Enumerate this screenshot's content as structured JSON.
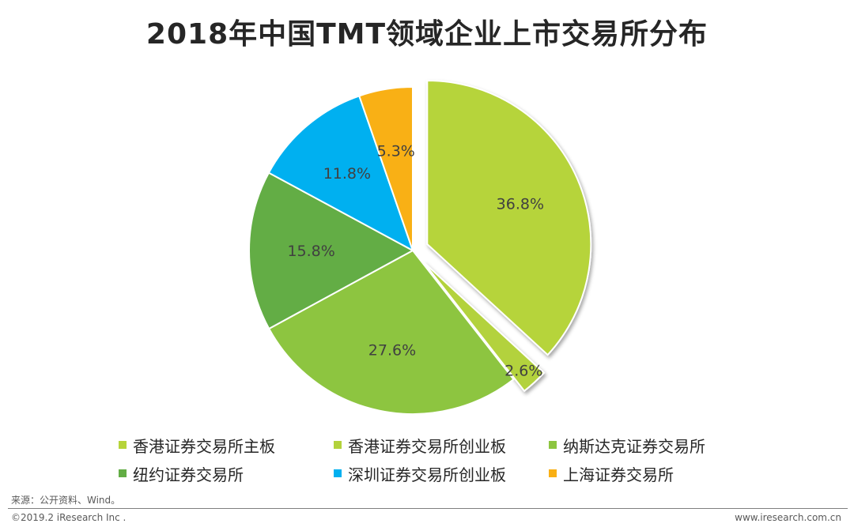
{
  "title": "2018年中国TMT领域企业上市交易所分布",
  "chart_data": {
    "type": "pie",
    "title": "2018年中国TMT领域企业上市交易所分布",
    "slices": [
      {
        "name": "香港证券交易所主板",
        "value": 36.8,
        "label": "36.8%",
        "color": "#B6D43A",
        "exploded": true
      },
      {
        "name": "香港证券交易所创业板",
        "value": 2.6,
        "label": "2.6%",
        "color": "#B3D23C",
        "exploded": true
      },
      {
        "name": "纳斯达克证券交易所",
        "value": 27.6,
        "label": "27.6%",
        "color": "#8DC540",
        "exploded": false
      },
      {
        "name": "纽约证券交易所",
        "value": 15.8,
        "label": "15.8%",
        "color": "#63AD45",
        "exploded": false
      },
      {
        "name": "深圳证券交易所创业板",
        "value": 11.8,
        "label": "11.8%",
        "color": "#00B0F0",
        "exploded": false
      },
      {
        "name": "上海证券交易所",
        "value": 5.3,
        "label": "5.3%",
        "color": "#F9B015",
        "exploded": false
      }
    ]
  },
  "legend": [
    {
      "label": "香港证券交易所主板",
      "color": "#B6D43A"
    },
    {
      "label": "香港证券交易所创业板",
      "color": "#B3D23C"
    },
    {
      "label": "纳斯达克证券交易所",
      "color": "#8DC540"
    },
    {
      "label": "纽约证券交易所",
      "color": "#63AD45"
    },
    {
      "label": "深圳证券交易所创业板",
      "color": "#00B0F0"
    },
    {
      "label": "上海证券交易所",
      "color": "#F9B015"
    }
  ],
  "source": "来源：公开资料、Wind。",
  "footer": {
    "copyright": "©2019.2 iResearch Inc .",
    "website": "www.iresearch.com.cn"
  }
}
